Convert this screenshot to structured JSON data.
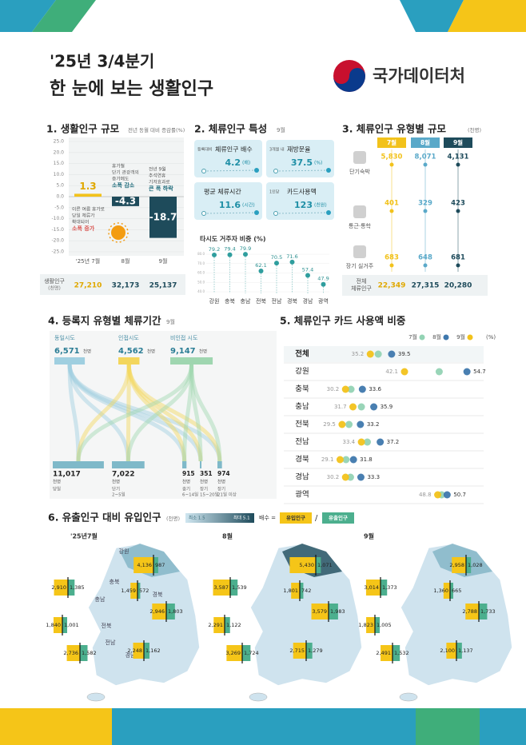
{
  "header": {
    "period": "'25년 3/4분기",
    "title": "한 눈에 보는 생활인구",
    "agency": "국가데이터처"
  },
  "section1": {
    "type": "bar",
    "heading": "1. 생활인구 규모",
    "subtitle": "전년 동월 대비 증감률(%)",
    "categories": [
      "'25년 7월",
      "8월",
      "9월"
    ],
    "values": [
      1.3,
      -4.3,
      -18.7
    ],
    "colors": [
      "#f2c21b",
      "#1e4b5b",
      "#1e4b5b"
    ],
    "ylim": [
      -25,
      25
    ],
    "yticks": [
      {
        "value": 25,
        "label": "25.0"
      },
      {
        "value": 20,
        "label": "20.0"
      },
      {
        "value": 15,
        "label": "15.0"
      },
      {
        "value": 10,
        "label": "10.0"
      },
      {
        "value": 5,
        "label": "5.0"
      },
      {
        "value": 0,
        "label": "0.0"
      },
      {
        "value": -5,
        "label": "-5.0"
      },
      {
        "value": -10,
        "label": "-10.0"
      },
      {
        "value": -15,
        "label": "-15.0"
      },
      {
        "value": -20,
        "label": "-20.0"
      },
      {
        "value": -25,
        "label": "-25.0"
      }
    ],
    "annotations": [
      [
        "이른 여름 휴가로",
        "당일 체류가",
        "확대되어",
        "소폭 증가"
      ],
      [
        "휴가철",
        "단기 관광객의",
        "증가에도",
        "소폭 감소"
      ],
      [
        "전년 9월",
        "추석연휴",
        "기저효과로",
        "큰 폭 하락"
      ]
    ],
    "table_label": [
      "생활인구",
      "(천명)"
    ],
    "table_values": [
      "27,210",
      "32,173",
      "25,137"
    ]
  },
  "section2": {
    "heading": "2. 체류인구 특성",
    "period": "9월",
    "cards": [
      {
        "prefix": "등록대비",
        "label": "체류인구 배수",
        "value": 4.2,
        "unit": "(배)"
      },
      {
        "prefix": "3개월 내",
        "label": "재방문율",
        "value": 37.5,
        "unit": "(%)"
      },
      {
        "label": "평균 체류시간",
        "value": 11.6,
        "unit": "(시간)"
      },
      {
        "prefix": "1인당",
        "label": "카드사용액",
        "value": 123,
        "unit": "(천원)"
      }
    ],
    "share": {
      "type": "lollipop",
      "title": "타시도 거주자 비중 (%)",
      "categories": [
        "강원",
        "충북",
        "충남",
        "전북",
        "전남",
        "경북",
        "경남",
        "광역"
      ],
      "values": [
        79.2,
        79.4,
        79.9,
        62.1,
        70.5,
        71.6,
        57.4,
        47.9
      ],
      "color": "#2f9e9e",
      "ylim": [
        40,
        80
      ],
      "yticks": [
        {
          "value": 40,
          "label": "40.0"
        },
        {
          "value": 50,
          "label": "50.0"
        },
        {
          "value": 60,
          "label": "60.0"
        },
        {
          "value": 70,
          "label": "70.0"
        },
        {
          "value": 80,
          "label": "80.0"
        }
      ]
    }
  },
  "section3": {
    "heading": "3. 체류인구 유형별 규모",
    "unit": "(천명)",
    "months": [
      "7월",
      "8월",
      "9월"
    ],
    "colors": [
      "#f2c21b",
      "#5aa9c9",
      "#1e4b5b"
    ],
    "rows": [
      {
        "label": "단기숙박",
        "values": [
          "5,830",
          "8,071",
          "4,131"
        ]
      },
      {
        "label": "통근·통학",
        "values": [
          "401",
          "329",
          "423"
        ]
      },
      {
        "label": "장기 실거주",
        "values": [
          "683",
          "648",
          "681"
        ]
      }
    ],
    "total": {
      "label": [
        "전체",
        "체류인구"
      ],
      "values": [
        "22,349",
        "27,315",
        "20,280"
      ]
    }
  },
  "section4": {
    "heading": "4. 등록지 유형별 체류기간",
    "period": "9월",
    "unit": "천명",
    "sources": [
      {
        "label": "동일시도",
        "value": 6571,
        "value_label": "6,571",
        "color": "#9fcfe0"
      },
      {
        "label": "인접시도",
        "value": 4562,
        "value_label": "4,562",
        "color": "#f3d65c"
      },
      {
        "label": "비인접 시도",
        "value": 9147,
        "value_label": "9,147",
        "color": "#9fd6b0"
      }
    ],
    "destinations": [
      {
        "label": [
          "당일"
        ],
        "value": 11017,
        "value_label": "11,017"
      },
      {
        "label": [
          "단기",
          "2~5일"
        ],
        "value": 7022,
        "value_label": "7,022"
      },
      {
        "label": [
          "중기",
          "6~14일"
        ],
        "value": 915,
        "value_label": "915"
      },
      {
        "label": [
          "장기",
          "15~20일"
        ],
        "value": 351,
        "value_label": "351"
      },
      {
        "label": [
          "장기",
          "21일 이상"
        ],
        "value": 974,
        "value_label": "974"
      }
    ]
  },
  "section5": {
    "type": "dot",
    "heading": "5. 체류인구 카드 사용액 비중",
    "unit": "(%)",
    "categories": [
      "전체",
      "강원",
      "충북",
      "충남",
      "전북",
      "전남",
      "경북",
      "경남",
      "광역"
    ],
    "series": [
      {
        "name": "7월",
        "color": "#93d3b4",
        "values": [
          36.8,
          49.1,
          31.3,
          33.4,
          30.9,
          34.6,
          30.3,
          31.2,
          49.6
        ]
      },
      {
        "name": "8월",
        "color": "#3f78ad",
        "values": [
          39.5,
          54.7,
          33.6,
          35.9,
          33.2,
          37.2,
          31.8,
          33.3,
          50.7
        ]
      },
      {
        "name": "9월",
        "color": "#f2c21b",
        "values": [
          35.2,
          42.1,
          30.2,
          31.7,
          29.5,
          33.4,
          29.1,
          30.2,
          48.8
        ]
      }
    ]
  },
  "section6": {
    "heading": "6. 유출인구 대비 유입인구",
    "unit": "(천명)",
    "scale_min": "최소 1.5",
    "scale_max": "최대 5.1",
    "formula": "배수 =",
    "inflow_label": "유입인구",
    "outflow_label": "유출인구",
    "inflow_color": "#f5c518",
    "outflow_color": "#4caf8e",
    "region_names": [
      "강원",
      "충북",
      "충남",
      "경북",
      "전북",
      "전남",
      "경남"
    ],
    "maps": [
      {
        "month": "'25년7월",
        "inflow": {
          "values": [
            4136,
            1459,
            2910,
            2946,
            1840,
            2736,
            2248
          ],
          "value_labels": [
            "4,136",
            "1,459",
            "2,910",
            "2,946",
            "1,840",
            "2,736",
            "2,248"
          ]
        },
        "outflow": {
          "values": [
            987,
            572,
            1385,
            1803,
            1001,
            1582,
            1162
          ],
          "value_labels": [
            "987",
            "572",
            "1,385",
            "1,803",
            "1,001",
            "1,582",
            "1,162"
          ]
        }
      },
      {
        "month": "8월",
        "inflow": {
          "values": [
            5430,
            1801,
            3587,
            3579,
            2291,
            3269,
            2715
          ],
          "value_labels": [
            "5,430",
            "1,801",
            "3,587",
            "3,579",
            "2,291",
            "3,269",
            "2,715"
          ]
        },
        "outflow": {
          "values": [
            1071,
            742,
            1539,
            1983,
            1122,
            1724,
            1279
          ],
          "value_labels": [
            "1,071",
            "742",
            "1,539",
            "1,983",
            "1,122",
            "1,724",
            "1,279"
          ]
        }
      },
      {
        "month": "9월",
        "inflow": {
          "values": [
            2958,
            1360,
            3014,
            2788,
            1823,
            2491,
            2100
          ],
          "value_labels": [
            "2,958",
            "1,360",
            "3,014",
            "2,788",
            "1,823",
            "2,491",
            "2,100"
          ]
        },
        "outflow": {
          "values": [
            1028,
            665,
            1373,
            1733,
            1005,
            1532,
            1137
          ],
          "value_labels": [
            "1,028",
            "665",
            "1,373",
            "1,733",
            "1,005",
            "1,532",
            "1,137"
          ]
        }
      }
    ]
  }
}
